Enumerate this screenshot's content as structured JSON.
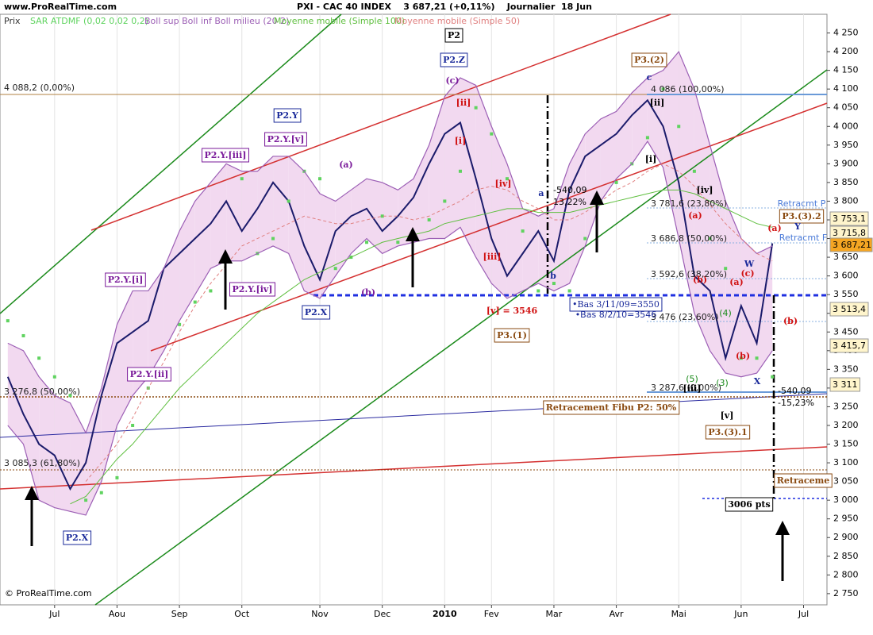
{
  "header": {
    "site": "www.ProRealTime.com",
    "title": "PXI - CAC 40 INDEX    3 687,21 (+0,11%)    Journalier  18 Jun",
    "footer": "© ProRealTime.com"
  },
  "chart_data": {
    "type": "line",
    "categories": [
      null,
      null,
      null,
      "Jul",
      null,
      null,
      null,
      "Aou",
      null,
      null,
      null,
      "Sep",
      null,
      null,
      null,
      "Oct",
      null,
      null,
      null,
      null,
      "Nov",
      null,
      null,
      null,
      "Dec",
      null,
      null,
      null,
      "2010",
      null,
      null,
      "Fev",
      null,
      null,
      null,
      "Mar",
      null,
      null,
      null,
      "Avr",
      null,
      null,
      null,
      "Mai",
      null,
      null,
      null,
      "Jun",
      null,
      null,
      null,
      "Jul",
      null
    ],
    "series": [
      {
        "name": "Prix",
        "color": "#1b1b6b",
        "style": "line",
        "values": [
          3330,
          3230,
          3150,
          3120,
          3030,
          3100,
          3280,
          3420,
          3450,
          3480,
          3620,
          3660,
          3700,
          3740,
          3800,
          3720,
          3780,
          3850,
          3800,
          3680,
          3590,
          3720,
          3760,
          3780,
          3720,
          3760,
          3810,
          3900,
          3980,
          4010,
          3860,
          3700,
          3600,
          3660,
          3720,
          3640,
          3830,
          3920,
          3950,
          3980,
          4030,
          4070,
          4000,
          3850,
          3600,
          3560,
          3380,
          3520,
          3420,
          3687,
          null,
          null,
          null
        ]
      },
      {
        "name": "SAR ATDMF (0,02 0,02 0,2)",
        "color": "#5fd35f",
        "style": "dots",
        "values": [
          3480,
          3440,
          3380,
          3330,
          3280,
          3000,
          3020,
          3060,
          3200,
          3300,
          3350,
          3470,
          3530,
          3560,
          3650,
          3860,
          3660,
          3700,
          3800,
          3880,
          3860,
          3620,
          3650,
          3690,
          3760,
          3690,
          3710,
          3750,
          3800,
          3880,
          4050,
          3980,
          3860,
          3720,
          3560,
          3580,
          3560,
          3700,
          3800,
          3850,
          3900,
          3970,
          4100,
          4000,
          3880,
          3700,
          3620,
          3380,
          3380,
          3330,
          null,
          null,
          null
        ]
      },
      {
        "name": "Boll sup Boll inf Boll milieu (20 2)",
        "color": "#9c5fb5",
        "style": "band",
        "values": [
          3420,
          3400,
          3330,
          3280,
          3260,
          3180,
          3300,
          3470,
          3560,
          3560,
          3620,
          3720,
          3800,
          3850,
          3900,
          3880,
          3880,
          3920,
          3920,
          3880,
          3820,
          3800,
          3830,
          3860,
          3850,
          3830,
          3860,
          3950,
          4080,
          4130,
          4110,
          4000,
          3900,
          3780,
          3760,
          3780,
          3900,
          3980,
          4020,
          4040,
          4090,
          4130,
          4150,
          4200,
          4100,
          3950,
          3800,
          3700,
          3660,
          3680,
          null,
          null,
          null
        ],
        "lower": [
          3200,
          3150,
          3000,
          2980,
          2970,
          2960,
          3050,
          3200,
          3280,
          3330,
          3400,
          3480,
          3550,
          3620,
          3640,
          3640,
          3660,
          3680,
          3660,
          3560,
          3540,
          3600,
          3660,
          3700,
          3660,
          3680,
          3690,
          3700,
          3700,
          3730,
          3650,
          3580,
          3540,
          3560,
          3580,
          3560,
          3580,
          3680,
          3800,
          3860,
          3900,
          3960,
          3890,
          3700,
          3500,
          3400,
          3340,
          3330,
          3340,
          3400,
          null,
          null,
          null
        ]
      },
      {
        "name": "Moyenne mobile (Simple 100)",
        "color": "#5fbf3f",
        "style": "thin",
        "values": [
          null,
          null,
          null,
          null,
          2990,
          3010,
          3060,
          3110,
          3150,
          3200,
          3250,
          3300,
          3340,
          3380,
          3420,
          3460,
          3500,
          3530,
          3560,
          3590,
          3610,
          3630,
          3650,
          3670,
          3690,
          3700,
          3710,
          3720,
          3740,
          3750,
          3760,
          3770,
          3780,
          3780,
          3770,
          3770,
          3770,
          3780,
          3790,
          3800,
          3810,
          3820,
          3830,
          3830,
          3820,
          3800,
          3780,
          3760,
          3740,
          3730,
          null,
          null,
          null
        ]
      },
      {
        "name": "Moyenne mobile (Simple 50)",
        "color": "#e08080",
        "style": "dashed",
        "values": [
          null,
          null,
          null,
          null,
          null,
          3050,
          3100,
          3150,
          3220,
          3300,
          3370,
          3450,
          3520,
          3580,
          3630,
          3680,
          3700,
          3720,
          3740,
          3760,
          3750,
          3740,
          3740,
          3750,
          3760,
          3760,
          3750,
          3760,
          3780,
          3800,
          3830,
          3840,
          3830,
          3800,
          3780,
          3750,
          3750,
          3770,
          3800,
          3830,
          3850,
          3880,
          3900,
          3880,
          3840,
          3790,
          3740,
          3700,
          3660,
          3640,
          null,
          null,
          null
        ]
      }
    ],
    "ylim": [
      2720,
      4300
    ],
    "yticks": [
      {
        "value": 2750,
        "label": "2 750"
      },
      {
        "value": 2800,
        "label": "2 800"
      },
      {
        "value": 2850,
        "label": "2 850"
      },
      {
        "value": 2900,
        "label": "2 900"
      },
      {
        "value": 2950,
        "label": "2 950"
      },
      {
        "value": 3000,
        "label": "3 000"
      },
      {
        "value": 3050,
        "label": "3 050"
      },
      {
        "value": 3100,
        "label": "3 100"
      },
      {
        "value": 3150,
        "label": "3 150"
      },
      {
        "value": 3200,
        "label": "3 200"
      },
      {
        "value": 3250,
        "label": "3 250"
      },
      {
        "value": 3300,
        "label": "3 300"
      },
      {
        "value": 3350,
        "label": "3 350"
      },
      {
        "value": 3400,
        "label": "3 400"
      },
      {
        "value": 3450,
        "label": "3 450"
      },
      {
        "value": 3500,
        "label": "3 500"
      },
      {
        "value": 3550,
        "label": "3 550"
      },
      {
        "value": 3600,
        "label": "3 600"
      },
      {
        "value": 3650,
        "label": "3 650"
      },
      {
        "value": 3700,
        "label": "3 700"
      },
      {
        "value": 3750,
        "label": "3 750"
      },
      {
        "value": 3800,
        "label": "3 800"
      },
      {
        "value": 3850,
        "label": "3 850"
      },
      {
        "value": 3900,
        "label": "3 900"
      },
      {
        "value": 3950,
        "label": "3 950"
      },
      {
        "value": 4000,
        "label": "4 000"
      },
      {
        "value": 4050,
        "label": "4 050"
      },
      {
        "value": 4100,
        "label": "4 100"
      },
      {
        "value": 4150,
        "label": "4 150"
      },
      {
        "value": 4200,
        "label": "4 200"
      },
      {
        "value": 4250,
        "label": "4 250"
      }
    ],
    "grid": true,
    "annotations": [
      "P2",
      "P2.Z",
      "P3.(2)",
      "P2.Y",
      "P2.Y.[v]",
      "P2.Y.[iii]",
      "P2.Y.[iv]",
      "P2.Y.[i]",
      "P2.Y.[ii]",
      "P2.X",
      "P2.X",
      "P3.(1)",
      "P3.(3).1",
      "P3.(3).2",
      "(c)",
      "(a)",
      "(b)",
      "c",
      "4 088,2 (0,00%)",
      "4 086 (100,00%)",
      "3 781,6 (23,80%)",
      "3 686,8 (50,00%)",
      "3 592,6 (38,20%)",
      "3 476 (23,60%)",
      "3 287,6 (0,00%)",
      "3 276,8 (50,00%)",
      "3 085,3 (61,80%)",
      "-540,09",
      "13,22%",
      "a",
      "b",
      "-540,09",
      "-15,23%",
      "Retracement Fibu P2: 50%",
      "Retraceme",
      "Retracmt P",
      "Retracmt F",
      "3006 pts",
      "[v] = 3546",
      "•Bas 3/11/09=3550",
      "•Bas 8/2/10=3546",
      "[iv]",
      "[ii]",
      "[i]",
      "[iii]",
      "[v]",
      "[ii]",
      "[i]",
      "[iv]",
      "[iii]",
      "(a)",
      "(b)",
      "(a)",
      "(c)",
      "(b)",
      "(b)",
      "(a)",
      "W",
      "X",
      "Y",
      "(5)",
      "(3)",
      "(4)",
      "3 753,1",
      "3 715,8",
      "3 687,21",
      "3 513,4",
      "3 415,7",
      "3 311"
    ]
  }
}
